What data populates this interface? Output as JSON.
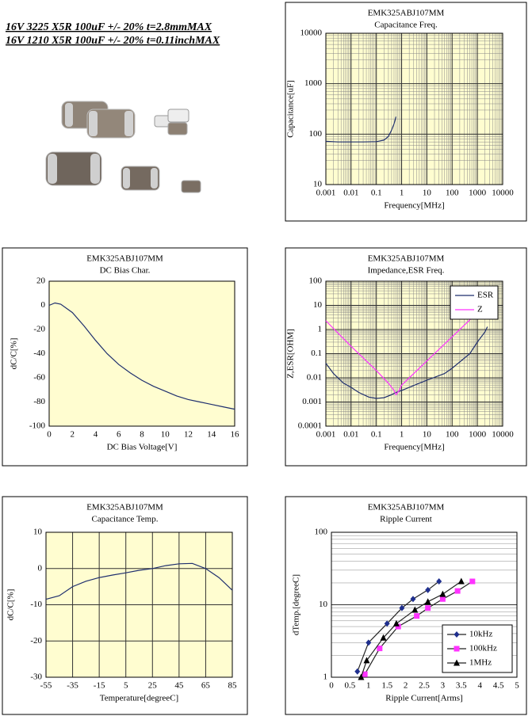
{
  "header": {
    "lines": [
      "16V 3225 X5R 100uF +/- 20% t=2.8mmMAX",
      "16V 1210 X5R 100uF +/- 20% t=0.11inchMAX"
    ]
  },
  "chart_data": [
    {
      "type": "line",
      "title": "EMK325ABJ107MM",
      "subtitle": "Capacitance Freq.",
      "xlabel": "Frequency[MHz]",
      "ylabel": "Capacitance[uF]",
      "x": [
        0.001,
        0.003,
        0.01,
        0.03,
        0.1,
        0.2,
        0.3,
        0.4,
        0.5,
        0.6
      ],
      "series": [
        {
          "name": "Capacitance",
          "color": "#1f2f6e",
          "values": [
            72,
            70,
            70,
            70,
            71,
            76,
            90,
            120,
            160,
            222
          ]
        }
      ],
      "xlim": [
        0.001,
        10000
      ],
      "ylim": [
        10,
        10000
      ],
      "xticks": [
        0.001,
        0.01,
        0.1,
        1,
        10,
        100,
        1000,
        10000
      ],
      "yticks": [
        10,
        100,
        1000,
        10000
      ],
      "xscale": "log",
      "yscale": "log",
      "grid": true,
      "plot_color": "#fffdd0"
    },
    {
      "type": "line",
      "title": "EMK325ABJ107MM",
      "subtitle": "DC Bias Char.",
      "xlabel": "DC Bias Voltage[V]",
      "ylabel": "dC/C[%]",
      "x": [
        0,
        0.5,
        1,
        2,
        3,
        4,
        5,
        6,
        7,
        8,
        9,
        10,
        11,
        12,
        13,
        14,
        15,
        16
      ],
      "series": [
        {
          "name": "dC/C",
          "color": "#1f2f6e",
          "values": [
            0,
            2,
            1,
            -6,
            -17,
            -29,
            -40,
            -49,
            -56,
            -62,
            -67,
            -71,
            -75,
            -78,
            -80,
            -82,
            -84,
            -86
          ]
        }
      ],
      "xlim": [
        0,
        16
      ],
      "ylim": [
        -100,
        20
      ],
      "xticks": [
        0,
        2,
        4,
        6,
        8,
        10,
        12,
        14,
        16
      ],
      "yticks": [
        -100,
        -80,
        -60,
        -40,
        -20,
        0,
        20
      ],
      "grid": false,
      "plot_color": "#fffdd0"
    },
    {
      "type": "line",
      "title": "EMK325ABJ107MM",
      "subtitle": "Impedance,ESR Freq.",
      "xlabel": "Frequency[MHz]",
      "ylabel": "Z,ESR[OHM]",
      "series": [
        {
          "name": "ESR",
          "color": "#1f2f6e",
          "x": [
            0.001,
            0.002,
            0.005,
            0.01,
            0.02,
            0.05,
            0.1,
            0.2,
            0.4,
            0.6,
            1,
            2,
            5,
            10,
            50,
            100,
            500,
            1000,
            2000,
            2500
          ],
          "values": [
            0.04,
            0.015,
            0.006,
            0.004,
            0.0025,
            0.0016,
            0.0014,
            0.0015,
            0.002,
            0.0025,
            0.003,
            0.004,
            0.006,
            0.008,
            0.015,
            0.025,
            0.1,
            0.3,
            0.8,
            1.3
          ]
        },
        {
          "name": "Z",
          "color": "#ff33ff",
          "x": [
            0.001,
            0.01,
            0.1,
            0.3,
            0.5,
            0.6,
            0.8,
            1,
            10,
            100,
            1000,
            2500
          ],
          "values": [
            2.3,
            0.2,
            0.02,
            0.006,
            0.003,
            0.002,
            0.003,
            0.005,
            0.05,
            0.5,
            5,
            11
          ]
        }
      ],
      "xlim": [
        0.001,
        10000
      ],
      "ylim": [
        0.0001,
        100
      ],
      "xticks": [
        0.001,
        0.01,
        0.1,
        1,
        10,
        100,
        1000,
        10000
      ],
      "yticks": [
        0.0001,
        0.001,
        0.01,
        0.1,
        1,
        10,
        100
      ],
      "xscale": "log",
      "yscale": "log",
      "grid": true,
      "legend": "top-right",
      "plot_color": "#fffdd0"
    },
    {
      "type": "line",
      "title": "EMK325ABJ107MM",
      "subtitle": "Capacitance Temp.",
      "xlabel": "Temperature[degreeC]",
      "ylabel": "dC/C[%]",
      "x": [
        -55,
        -45,
        -35,
        -25,
        -15,
        -5,
        5,
        15,
        25,
        35,
        45,
        55,
        65,
        75,
        85
      ],
      "series": [
        {
          "name": "dC/C",
          "color": "#1f2f6e",
          "values": [
            -8.5,
            -7.5,
            -5,
            -3.5,
            -2.5,
            -1.8,
            -1.2,
            -0.5,
            0,
            0.8,
            1.3,
            1.4,
            0,
            -2.5,
            -6
          ]
        }
      ],
      "xlim": [
        -55,
        85
      ],
      "ylim": [
        -30,
        10
      ],
      "xticks": [
        -55,
        -35,
        -15,
        5,
        25,
        45,
        65,
        85
      ],
      "yticks": [
        -30,
        -20,
        -10,
        0,
        10
      ],
      "grid": true,
      "plot_color": "#fffdd0"
    },
    {
      "type": "line",
      "title": "EMK325ABJ107MM",
      "subtitle": "Ripple Current",
      "xlabel": "Ripple Current[Arms]",
      "ylabel": "dTemp.[degreeC]",
      "series": [
        {
          "name": "10kHz",
          "color": "#1f2f8e",
          "marker": "diamond",
          "x": [
            0.7,
            1.0,
            1.5,
            1.9,
            2.2,
            2.6,
            2.9
          ],
          "values": [
            1.2,
            3.0,
            5.5,
            9,
            12,
            16,
            21
          ]
        },
        {
          "name": "100kHz",
          "color": "#ff33ff",
          "marker": "square",
          "x": [
            0.9,
            1.3,
            1.8,
            2.3,
            2.6,
            3.0,
            3.4,
            3.8
          ],
          "values": [
            1.1,
            2.5,
            5,
            7,
            9,
            12,
            15.5,
            21
          ]
        },
        {
          "name": "1MHz",
          "color": "#000000",
          "marker": "triangle",
          "x": [
            0.8,
            0.95,
            1.4,
            1.75,
            2.25,
            2.6,
            3.0,
            3.5
          ],
          "values": [
            1.0,
            1.7,
            3.5,
            5.5,
            8.5,
            11,
            14,
            21
          ]
        }
      ],
      "xlim": [
        0,
        5
      ],
      "ylim": [
        1,
        100
      ],
      "xticks": [
        0,
        0.5,
        1,
        1.5,
        2,
        2.5,
        3,
        3.5,
        4,
        4.5,
        5
      ],
      "yticks": [
        1,
        10,
        100
      ],
      "yscale": "log",
      "grid": "y",
      "legend": "bottom-right",
      "plot_color": "#ffffff"
    }
  ]
}
